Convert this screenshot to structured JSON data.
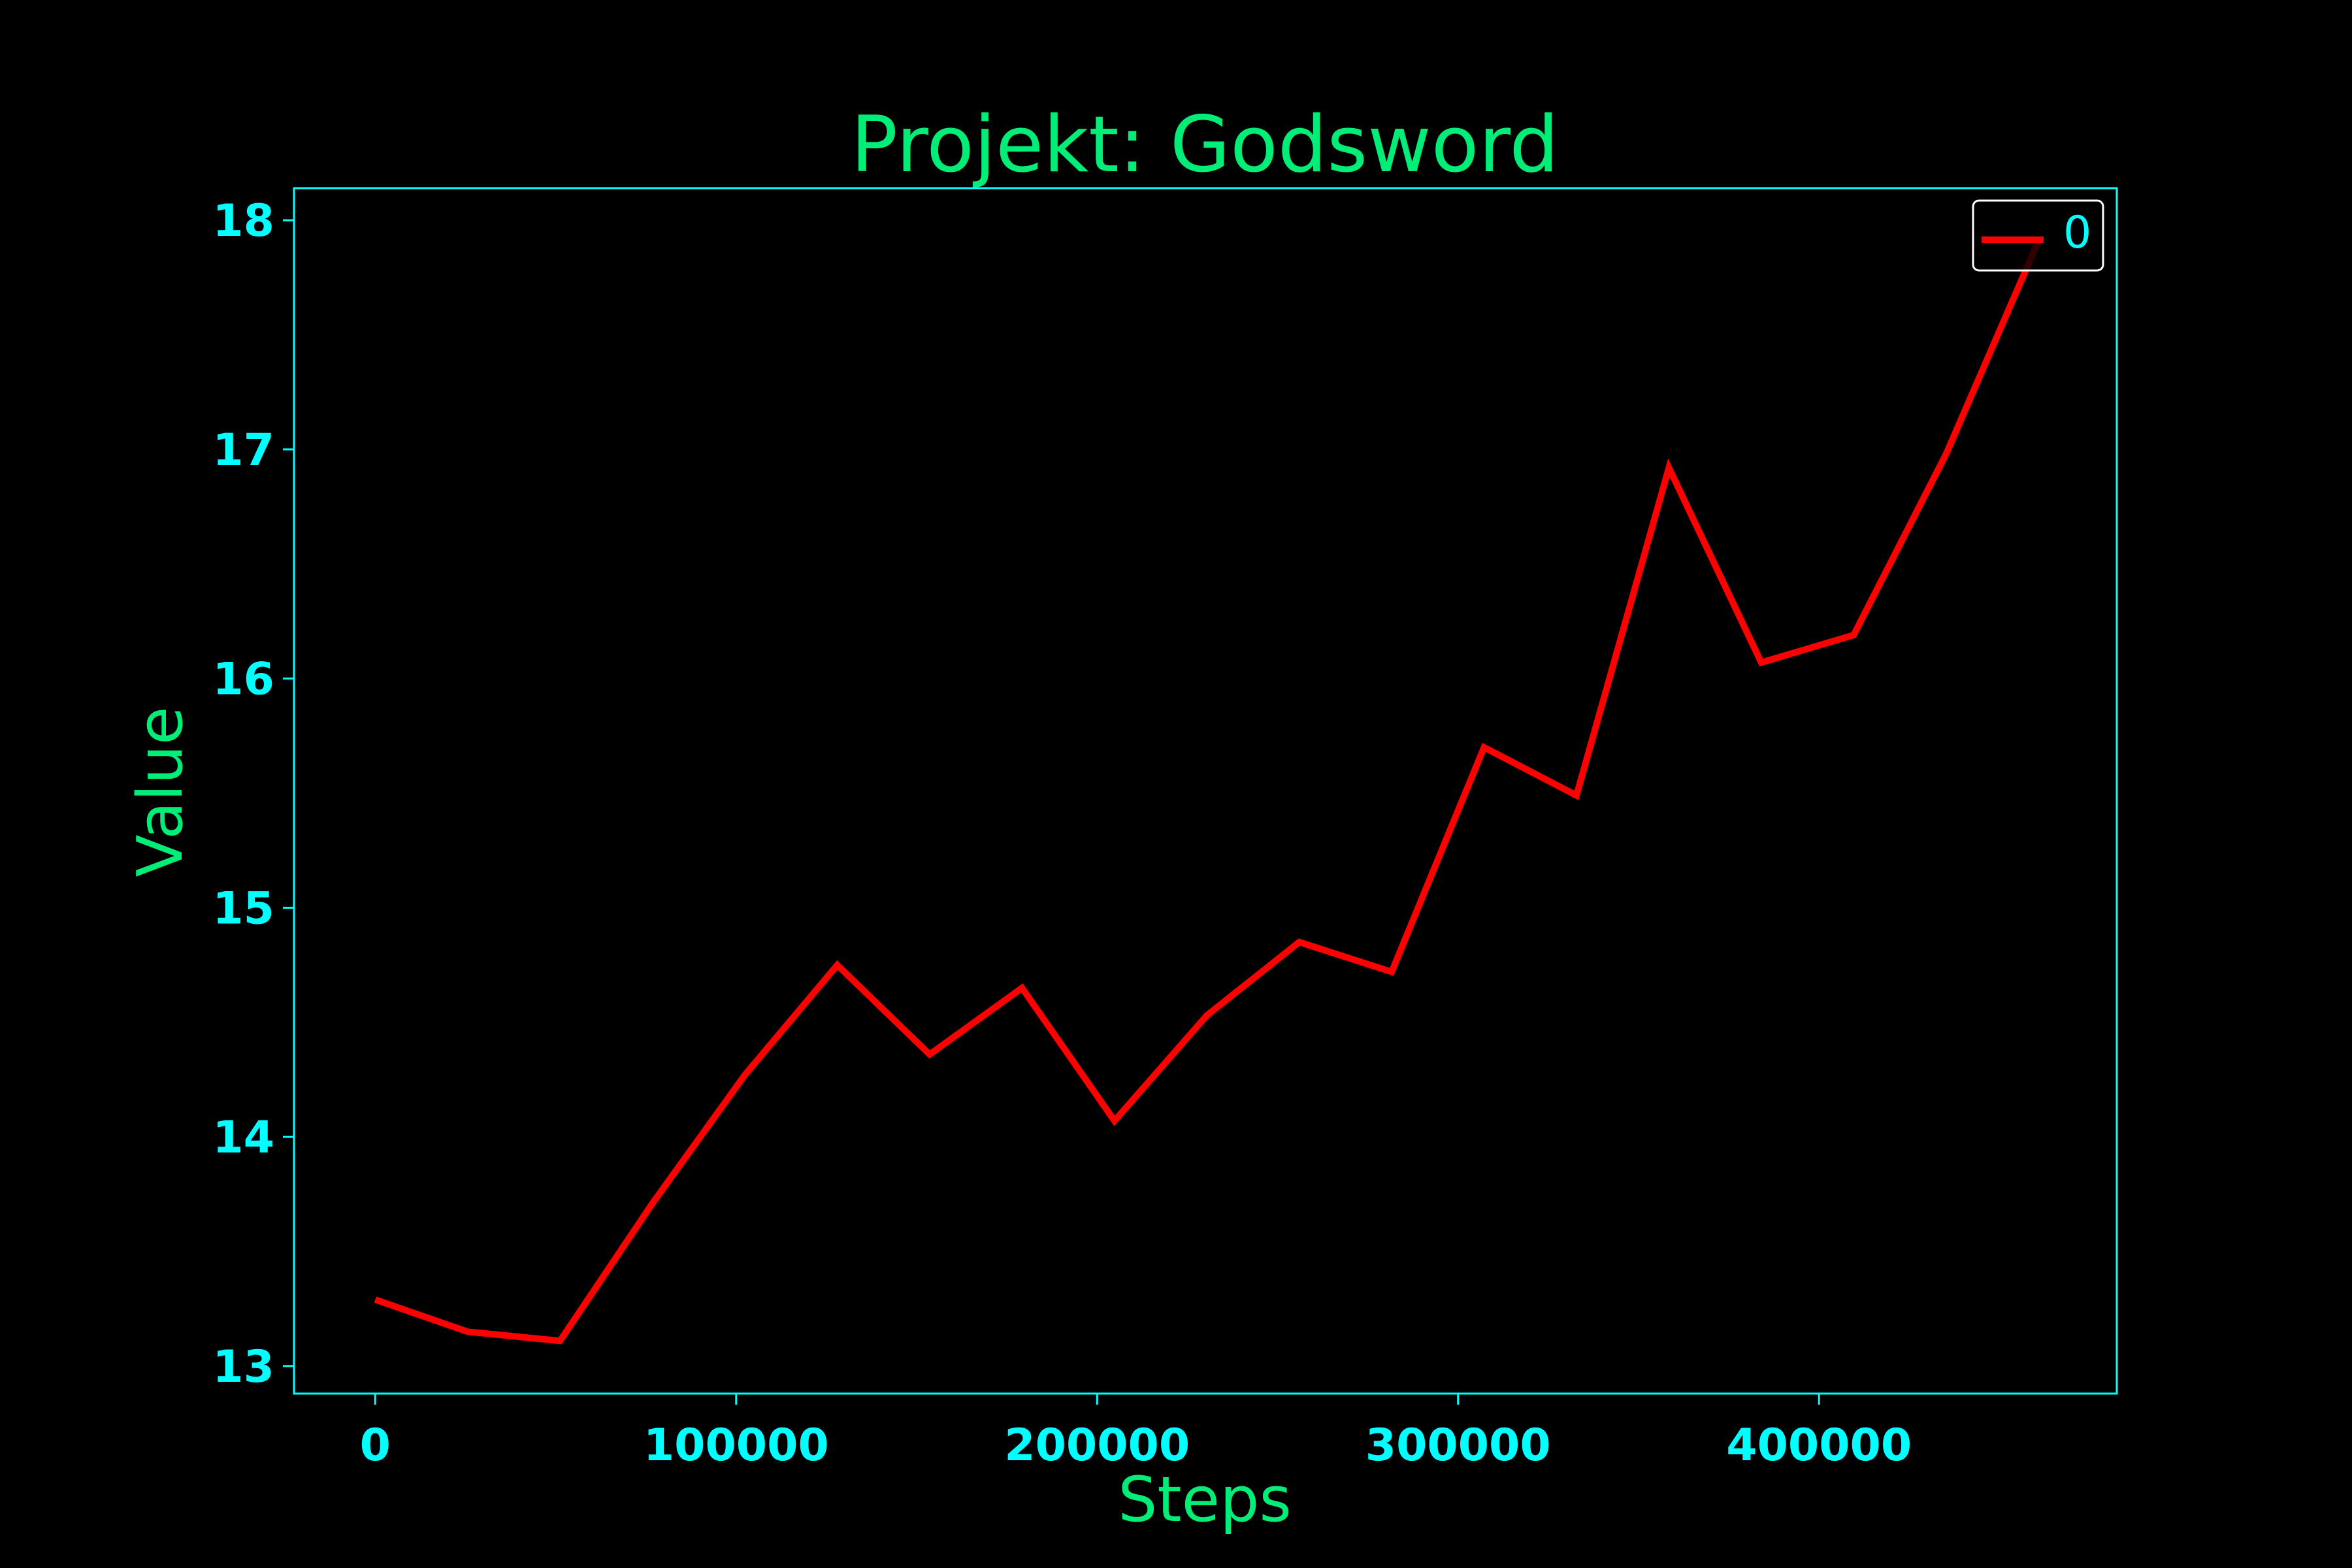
{
  "chart_data": {
    "type": "line",
    "title": "Projekt: Godsword",
    "xlabel": "Steps",
    "ylabel": "Value",
    "xlim": [
      -22500,
      482500
    ],
    "ylim": [
      12.88,
      18.14
    ],
    "xticks": [
      0,
      100000,
      200000,
      300000,
      400000
    ],
    "xtick_labels": [
      "0",
      "100000",
      "200000",
      "300000",
      "400000"
    ],
    "yticks": [
      13,
      14,
      15,
      16,
      17,
      18
    ],
    "ytick_labels": [
      "13",
      "14",
      "15",
      "16",
      "17",
      "18"
    ],
    "grid": false,
    "legend_position": "top-right",
    "series": [
      {
        "name": "0",
        "x": [
          0,
          25600,
          51200,
          76800,
          102400,
          128000,
          153600,
          179200,
          204800,
          230400,
          256000,
          281600,
          307200,
          332800,
          358400,
          384000,
          409600,
          435200,
          460800
        ],
        "values": [
          13.29,
          13.15,
          13.11,
          13.71,
          14.27,
          14.75,
          14.36,
          14.65,
          14.07,
          14.53,
          14.85,
          14.72,
          15.7,
          15.49,
          16.92,
          16.07,
          16.19,
          16.98,
          17.91
        ]
      }
    ],
    "colors": {
      "background": "#000000",
      "line": "#ff0000",
      "title": "#00ee77",
      "axis_label": "#00ee77",
      "ticks": "#00ffff",
      "spines": "#00ffff",
      "legend_text": "#00ffff",
      "legend_border": "#ffffff"
    }
  }
}
